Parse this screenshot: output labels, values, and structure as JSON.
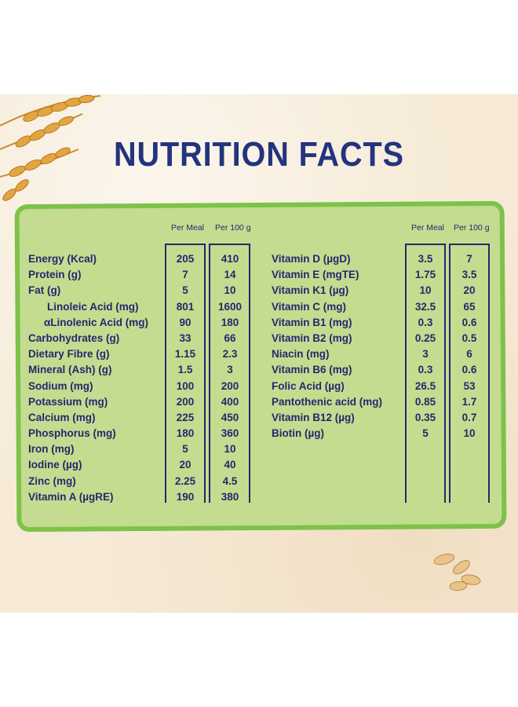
{
  "title": "NUTRITION FACTS",
  "headers": {
    "per_meal": "Per Meal",
    "per_100g": "Per 100 g"
  },
  "left_table": [
    {
      "name": "Energy (Kcal)",
      "per_meal": "205",
      "per_100g": "410"
    },
    {
      "name": "Protein (g)",
      "per_meal": "7",
      "per_100g": "14"
    },
    {
      "name": "Fat (g)",
      "per_meal": "5",
      "per_100g": "10"
    },
    {
      "name": "Linoleic Acid (mg)",
      "per_meal": "801",
      "per_100g": "1600"
    },
    {
      "name": "αLinolenic Acid (mg)",
      "per_meal": "90",
      "per_100g": "180"
    },
    {
      "name": "Carbohydrates (g)",
      "per_meal": "33",
      "per_100g": "66"
    },
    {
      "name": "Dietary Fibre (g)",
      "per_meal": "1.15",
      "per_100g": "2.3"
    },
    {
      "name": "Mineral (Ash) (g)",
      "per_meal": "1.5",
      "per_100g": "3"
    },
    {
      "name": "Sodium (mg)",
      "per_meal": "100",
      "per_100g": "200"
    },
    {
      "name": "Potassium (mg)",
      "per_meal": "200",
      "per_100g": "400"
    },
    {
      "name": "Calcium (mg)",
      "per_meal": "225",
      "per_100g": "450"
    },
    {
      "name": "Phosphorus (mg)",
      "per_meal": "180",
      "per_100g": "360"
    },
    {
      "name": "Iron (mg)",
      "per_meal": "5",
      "per_100g": "10"
    },
    {
      "name": "Iodine (µg)",
      "per_meal": "20",
      "per_100g": "40"
    },
    {
      "name": "Zinc (mg)",
      "per_meal": "2.25",
      "per_100g": "4.5"
    },
    {
      "name": "Vitamin A (µgRE)",
      "per_meal": "190",
      "per_100g": "380"
    }
  ],
  "right_table": [
    {
      "name": "Vitamin D (µgD)",
      "per_meal": "3.5",
      "per_100g": "7"
    },
    {
      "name": "Vitamin E (mgTE)",
      "per_meal": "1.75",
      "per_100g": "3.5"
    },
    {
      "name": "Vitamin K1 (µg)",
      "per_meal": "10",
      "per_100g": "20"
    },
    {
      "name": "Vitamin C (mg)",
      "per_meal": "32.5",
      "per_100g": "65"
    },
    {
      "name": "Vitamin B1 (mg)",
      "per_meal": "0.3",
      "per_100g": "0.6"
    },
    {
      "name": "Vitamin B2 (mg)",
      "per_meal": "0.25",
      "per_100g": "0.5"
    },
    {
      "name": "Niacin (mg)",
      "per_meal": "3",
      "per_100g": "6"
    },
    {
      "name": "Vitamin B6 (mg)",
      "per_meal": "0.3",
      "per_100g": "0.6"
    },
    {
      "name": "Folic Acid (µg)",
      "per_meal": "26.5",
      "per_100g": "53"
    },
    {
      "name": "Pantothenic acid (mg)",
      "per_meal": "0.85",
      "per_100g": "1.7"
    },
    {
      "name": "Vitamin B12 (µg)",
      "per_meal": "0.35",
      "per_100g": "0.7"
    },
    {
      "name": "Biotin (µg)",
      "per_meal": "5",
      "per_100g": "10"
    }
  ],
  "colors": {
    "title": "#23337e",
    "table_text": "#1f2a6e",
    "board_fill": "#c4dc8f",
    "board_border": "#7dc24a",
    "background": "#f6ead6"
  },
  "icons": {
    "top_left": "wheat-ears-icon",
    "bottom_right": "cereal-grains-icon"
  }
}
